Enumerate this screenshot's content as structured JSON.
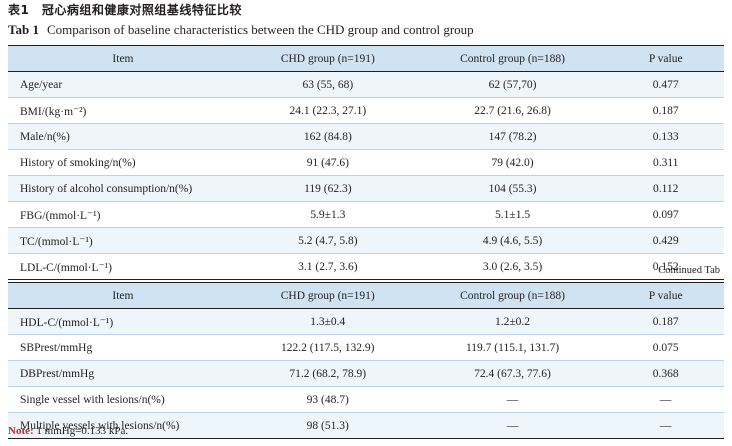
{
  "title_cn": "表1　冠心病组和健康对照组基线特征比较",
  "title_en_label": "Tab 1",
  "title_en_text": "Comparison of baseline characteristics between the CHD group and control group",
  "headers": {
    "item": "Item",
    "chd": "CHD group (n=191)",
    "control": "Control group (n=188)",
    "p": "P value"
  },
  "table1_rows": [
    {
      "item": "Age/year",
      "chd": "63 (55, 68)",
      "control": "62 (57,70)",
      "p": "0.477"
    },
    {
      "item": "BMI/(kg·m⁻²)",
      "chd": "24.1 (22.3, 27.1)",
      "control": "22.7 (21.6, 26.8)",
      "p": "0.187"
    },
    {
      "item": "Male/n(%)",
      "chd": "162 (84.8)",
      "control": "147 (78.2)",
      "p": "0.133"
    },
    {
      "item": "History of smoking/n(%)",
      "chd": "91 (47.6)",
      "control": "79 (42.0)",
      "p": "0.311"
    },
    {
      "item": "History of alcohol consumption/n(%)",
      "chd": "119 (62.3)",
      "control": "104 (55.3)",
      "p": "0.112"
    },
    {
      "item": "FBG/(mmol·L⁻¹)",
      "chd": "5.9±1.3",
      "control": "5.1±1.5",
      "p": "0.097"
    },
    {
      "item": "TC/(mmol·L⁻¹)",
      "chd": "5.2 (4.7, 5.8)",
      "control": "4.9 (4.6, 5.5)",
      "p": "0.429"
    },
    {
      "item": "LDL-C/(mmol·L⁻¹)",
      "chd": "3.1 (2.7, 3.6)",
      "control": "3.0 (2.6, 3.5)",
      "p": "0.152"
    }
  ],
  "continued_label": "Continued Tab",
  "table2_rows": [
    {
      "item": "HDL-C/(mmol·L⁻¹)",
      "chd": "1.3±0.4",
      "control": "1.2±0.2",
      "p": "0.187"
    },
    {
      "item": "SBPrest/mmHg",
      "chd": "122.2 (117.5, 132.9)",
      "control": "119.7 (115.1, 131.7)",
      "p": "0.075"
    },
    {
      "item": "DBPrest/mmHg",
      "chd": "71.2 (68.2, 78.9)",
      "control": "72.4 (67.3, 77.6)",
      "p": "0.368"
    },
    {
      "item": "Single vessel with lesions/n(%)",
      "chd": "93 (48.7)",
      "control": "—",
      "p": "—"
    },
    {
      "item": "Multiple vessels with lesions/n(%)",
      "chd": "98 (51.3)",
      "control": "—",
      "p": "—"
    }
  ],
  "note_label": "Note:",
  "note_text": " 1 mmHg=0.133 kPa."
}
